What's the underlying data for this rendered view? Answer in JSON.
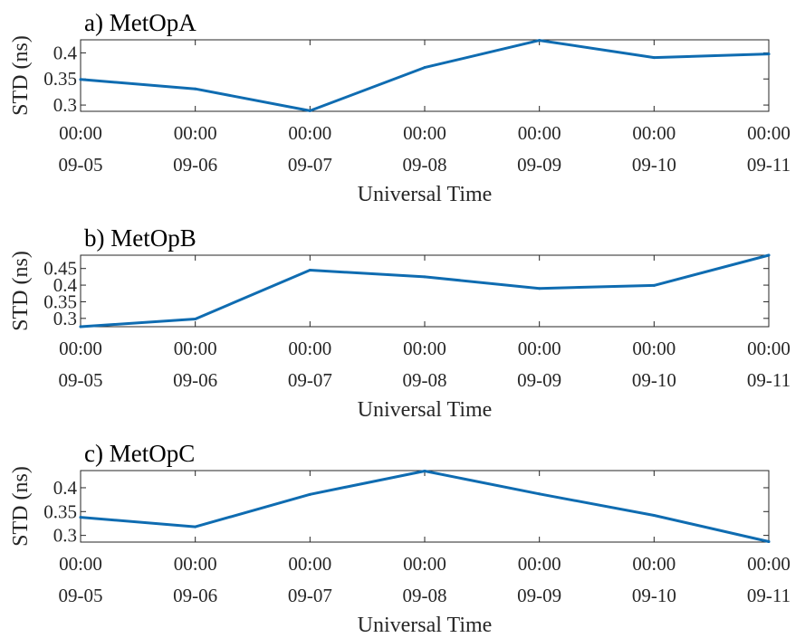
{
  "chart_data": [
    {
      "type": "line",
      "title": "a) MetOpA",
      "xlabel": "Universal Time",
      "ylabel": "STD (ns)",
      "x": [
        "09-05 00:00",
        "09-06 00:00",
        "09-07 00:00",
        "09-08 00:00",
        "09-09 00:00",
        "09-10 00:00",
        "09-11 00:00"
      ],
      "x_tick_labels": [
        {
          "time": "00:00",
          "date": "09-05"
        },
        {
          "time": "00:00",
          "date": "09-06"
        },
        {
          "time": "00:00",
          "date": "09-07"
        },
        {
          "time": "00:00",
          "date": "09-08"
        },
        {
          "time": "00:00",
          "date": "09-09"
        },
        {
          "time": "00:00",
          "date": "09-10"
        },
        {
          "time": "00:00",
          "date": "09-11"
        }
      ],
      "y_tick_labels": [
        "0.3",
        "0.35",
        "0.4"
      ],
      "y_ticks": [
        0.3,
        0.35,
        0.4
      ],
      "ylim": [
        0.288,
        0.425
      ],
      "series": [
        {
          "values": [
            0.349,
            0.331,
            0.289,
            0.372,
            0.424,
            0.391,
            0.398
          ]
        }
      ],
      "grid": false,
      "color": "#0f6cb1"
    },
    {
      "type": "line",
      "title": "b) MetOpB",
      "xlabel": "Universal Time",
      "ylabel": "STD (ns)",
      "x": [
        "09-05 00:00",
        "09-06 00:00",
        "09-07 00:00",
        "09-08 00:00",
        "09-09 00:00",
        "09-10 00:00",
        "09-11 00:00"
      ],
      "x_tick_labels": [
        {
          "time": "00:00",
          "date": "09-05"
        },
        {
          "time": "00:00",
          "date": "09-06"
        },
        {
          "time": "00:00",
          "date": "09-07"
        },
        {
          "time": "00:00",
          "date": "09-08"
        },
        {
          "time": "00:00",
          "date": "09-09"
        },
        {
          "time": "00:00",
          "date": "09-10"
        },
        {
          "time": "00:00",
          "date": "09-11"
        }
      ],
      "y_tick_labels": [
        "0.3",
        "0.35",
        "0.4",
        "0.45"
      ],
      "y_ticks": [
        0.3,
        0.35,
        0.4,
        0.45
      ],
      "ylim": [
        0.275,
        0.49
      ],
      "series": [
        {
          "values": [
            0.275,
            0.298,
            0.445,
            0.425,
            0.39,
            0.399,
            0.49
          ]
        }
      ],
      "grid": false,
      "color": "#0f6cb1"
    },
    {
      "type": "line",
      "title": "c) MetOpC",
      "xlabel": "Universal Time",
      "ylabel": "STD (ns)",
      "x": [
        "09-05 00:00",
        "09-06 00:00",
        "09-07 00:00",
        "09-08 00:00",
        "09-09 00:00",
        "09-10 00:00",
        "09-11 00:00"
      ],
      "x_tick_labels": [
        {
          "time": "00:00",
          "date": "09-05"
        },
        {
          "time": "00:00",
          "date": "09-06"
        },
        {
          "time": "00:00",
          "date": "09-07"
        },
        {
          "time": "00:00",
          "date": "09-08"
        },
        {
          "time": "00:00",
          "date": "09-09"
        },
        {
          "time": "00:00",
          "date": "09-10"
        },
        {
          "time": "00:00",
          "date": "09-11"
        }
      ],
      "y_tick_labels": [
        "0.3",
        "0.35",
        "0.4"
      ],
      "y_ticks": [
        0.3,
        0.35,
        0.4
      ],
      "ylim": [
        0.286,
        0.436
      ],
      "series": [
        {
          "values": [
            0.338,
            0.318,
            0.386,
            0.435,
            0.387,
            0.342,
            0.287
          ]
        }
      ],
      "grid": false,
      "color": "#0f6cb1"
    }
  ]
}
